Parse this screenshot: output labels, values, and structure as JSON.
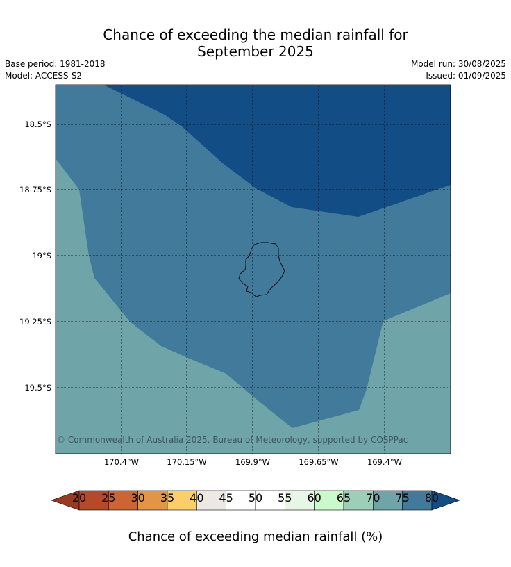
{
  "header": {
    "title_line1": "Chance of exceeding the median rainfall for",
    "title_line2": "September 2025",
    "base_period": "Base period: 1981-2018",
    "model": "Model: ACCESS-S2",
    "model_run": "Model run: 30/08/2025",
    "issued": "Issued: 01/09/2025"
  },
  "map": {
    "lat_ticks": [
      "18.5°S",
      "18.75°S",
      "19°S",
      "19.25°S",
      "19.5°S"
    ],
    "lon_ticks": [
      "170.4°W",
      "170.15°W",
      "169.9°W",
      "169.65°W",
      "169.4°W"
    ],
    "copyright": "© Commonwealth of Australia 2025, Bureau of Meteorology, supported by COSPPac",
    "colors": {
      "band_70_75": "#6fa5a8",
      "band_75_80": "#417a9a",
      "band_80_plus": "#134d86"
    }
  },
  "colorbar": {
    "label": "Chance of exceeding median rainfall (%)",
    "ticks": [
      "20",
      "25",
      "30",
      "35",
      "40",
      "45",
      "50",
      "55",
      "60",
      "65",
      "70",
      "75",
      "80"
    ],
    "under_color": "#973a22",
    "over_color": "#134d86",
    "colors": [
      "#b34a28",
      "#cd6532",
      "#e29447",
      "#fdcd6a",
      "#ece8e4",
      "#ffffff",
      "#ffffff",
      "#e8f6e8",
      "#caf9cb",
      "#9bcfb7",
      "#6fa5a8",
      "#417a9a"
    ]
  }
}
